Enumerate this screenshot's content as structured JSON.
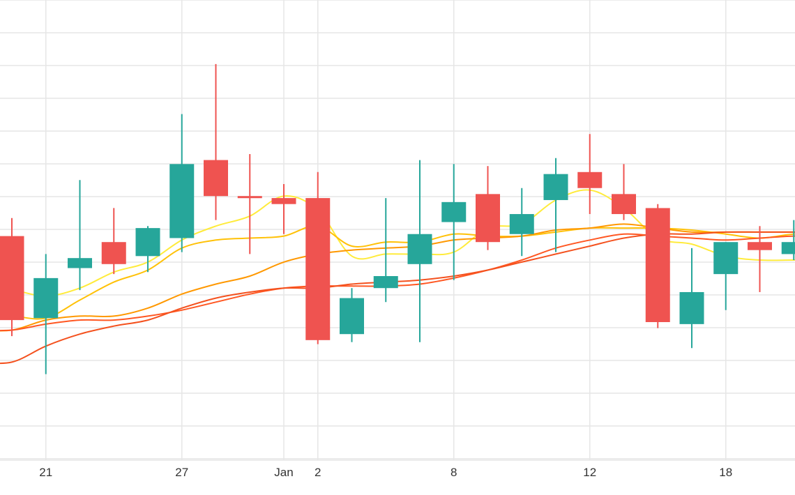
{
  "chart_data": {
    "type": "candlestick",
    "title": "",
    "xlabel": "",
    "ylabel": "",
    "grid": true,
    "legend": "none",
    "colors": {
      "up": "#26a69a",
      "down": "#ef5350",
      "grid": "#e6e6e6",
      "ma_lines": [
        "#ffeb3b",
        "#ffc107",
        "#ff9800",
        "#ff5722",
        "#f4511e"
      ]
    },
    "x_ticks": [
      {
        "day": 1,
        "label": "21"
      },
      {
        "day": 5,
        "label": "27"
      },
      {
        "day": 8,
        "label": "Jan"
      },
      {
        "day": 9,
        "label": "2"
      },
      {
        "day": 13,
        "label": "8"
      },
      {
        "day": 17,
        "label": "12"
      },
      {
        "day": 21,
        "label": "18"
      }
    ],
    "candles": [
      {
        "day": 0,
        "open": 50.2,
        "high": 51.1,
        "low": 45.2,
        "close": 46.0
      },
      {
        "day": 1,
        "open": 46.1,
        "high": 49.3,
        "low": 43.3,
        "close": 48.1
      },
      {
        "day": 2,
        "open": 48.6,
        "high": 53.0,
        "low": 47.5,
        "close": 49.1
      },
      {
        "day": 3,
        "open": 49.9,
        "high": 51.6,
        "low": 48.3,
        "close": 48.8
      },
      {
        "day": 4,
        "open": 49.2,
        "high": 50.7,
        "low": 48.4,
        "close": 50.6
      },
      {
        "day": 5,
        "open": 50.1,
        "high": 56.3,
        "low": 49.4,
        "close": 53.8
      },
      {
        "day": 6,
        "open": 54.0,
        "high": 58.8,
        "low": 51.0,
        "close": 52.2
      },
      {
        "day": 7,
        "open": 52.2,
        "high": 54.3,
        "low": 49.3,
        "close": 52.1
      },
      {
        "day": 8,
        "open": 52.1,
        "high": 52.8,
        "low": 50.3,
        "close": 51.8
      },
      {
        "day": 9,
        "open": 52.1,
        "high": 53.4,
        "low": 44.8,
        "close": 45.0
      },
      {
        "day": 10,
        "open": 45.3,
        "high": 47.6,
        "low": 44.9,
        "close": 47.1
      },
      {
        "day": 11,
        "open": 47.6,
        "high": 52.1,
        "low": 46.9,
        "close": 48.2
      },
      {
        "day": 12,
        "open": 48.8,
        "high": 54.0,
        "low": 44.9,
        "close": 50.3
      },
      {
        "day": 13,
        "open": 50.9,
        "high": 53.8,
        "low": 48.0,
        "close": 51.9
      },
      {
        "day": 14,
        "open": 52.3,
        "high": 53.7,
        "low": 49.5,
        "close": 49.9
      },
      {
        "day": 15,
        "open": 50.3,
        "high": 52.6,
        "low": 49.2,
        "close": 51.3
      },
      {
        "day": 16,
        "open": 52.0,
        "high": 54.1,
        "low": 49.4,
        "close": 53.3
      },
      {
        "day": 17,
        "open": 53.4,
        "high": 55.3,
        "low": 51.3,
        "close": 52.6
      },
      {
        "day": 18,
        "open": 52.3,
        "high": 53.8,
        "low": 51.0,
        "close": 51.3
      },
      {
        "day": 19,
        "open": 51.6,
        "high": 51.8,
        "low": 45.6,
        "close": 45.9
      },
      {
        "day": 20,
        "open": 45.8,
        "high": 49.6,
        "low": 44.6,
        "close": 47.4
      },
      {
        "day": 21,
        "open": 48.3,
        "high": 49.9,
        "low": 46.5,
        "close": 49.9
      },
      {
        "day": 22,
        "open": 49.9,
        "high": 50.7,
        "low": 47.4,
        "close": 49.5
      },
      {
        "day": 23,
        "open": 49.3,
        "high": 51.0,
        "low": 49.0,
        "close": 49.9
      }
    ],
    "series": [
      {
        "color": "#ffeb3b",
        "values": [
          47.5,
          47.2,
          47.6,
          48.4,
          48.9,
          50.0,
          50.7,
          51.2,
          52.2,
          51.5,
          49.2,
          49.3,
          49.3,
          49.4,
          50.6,
          50.8,
          52.0,
          52.5,
          51.6,
          50.1,
          49.8,
          49.2,
          49.0,
          49.0
        ]
      },
      {
        "color": "#ffc107",
        "values": [
          46.2,
          46.1,
          47.0,
          47.9,
          48.5,
          49.6,
          50.0,
          50.1,
          50.2,
          50.7,
          49.7,
          49.9,
          49.9,
          50.3,
          50.2,
          50.2,
          50.4,
          50.6,
          50.6,
          50.6,
          50.5,
          50.3,
          50.1,
          50.3
        ]
      },
      {
        "color": "#ff9800",
        "values": [
          45.5,
          46.0,
          46.2,
          46.2,
          46.6,
          47.3,
          47.8,
          48.2,
          48.9,
          49.3,
          49.5,
          49.6,
          49.7,
          50.0,
          50.1,
          50.2,
          50.5,
          50.6,
          50.8,
          50.6,
          50.4,
          50.4,
          50.4,
          50.4
        ]
      },
      {
        "color": "#ff5722",
        "values": [
          45.5,
          45.8,
          46.0,
          46.0,
          46.2,
          46.5,
          46.9,
          47.3,
          47.6,
          47.7,
          47.7,
          47.7,
          47.8,
          48.1,
          48.5,
          49.0,
          49.6,
          50.0,
          50.3,
          50.2,
          50.1,
          50.0,
          50.1,
          50.2
        ]
      },
      {
        "color": "#f4511e",
        "values": [
          43.9,
          44.7,
          45.3,
          45.7,
          46.0,
          46.6,
          47.1,
          47.4,
          47.6,
          47.6,
          47.8,
          47.9,
          48.0,
          48.2,
          48.5,
          48.9,
          49.3,
          49.7,
          50.1,
          50.3,
          50.3,
          50.4,
          50.4,
          50.4
        ]
      }
    ],
    "ylim": [
      39.0,
      62.0
    ]
  }
}
